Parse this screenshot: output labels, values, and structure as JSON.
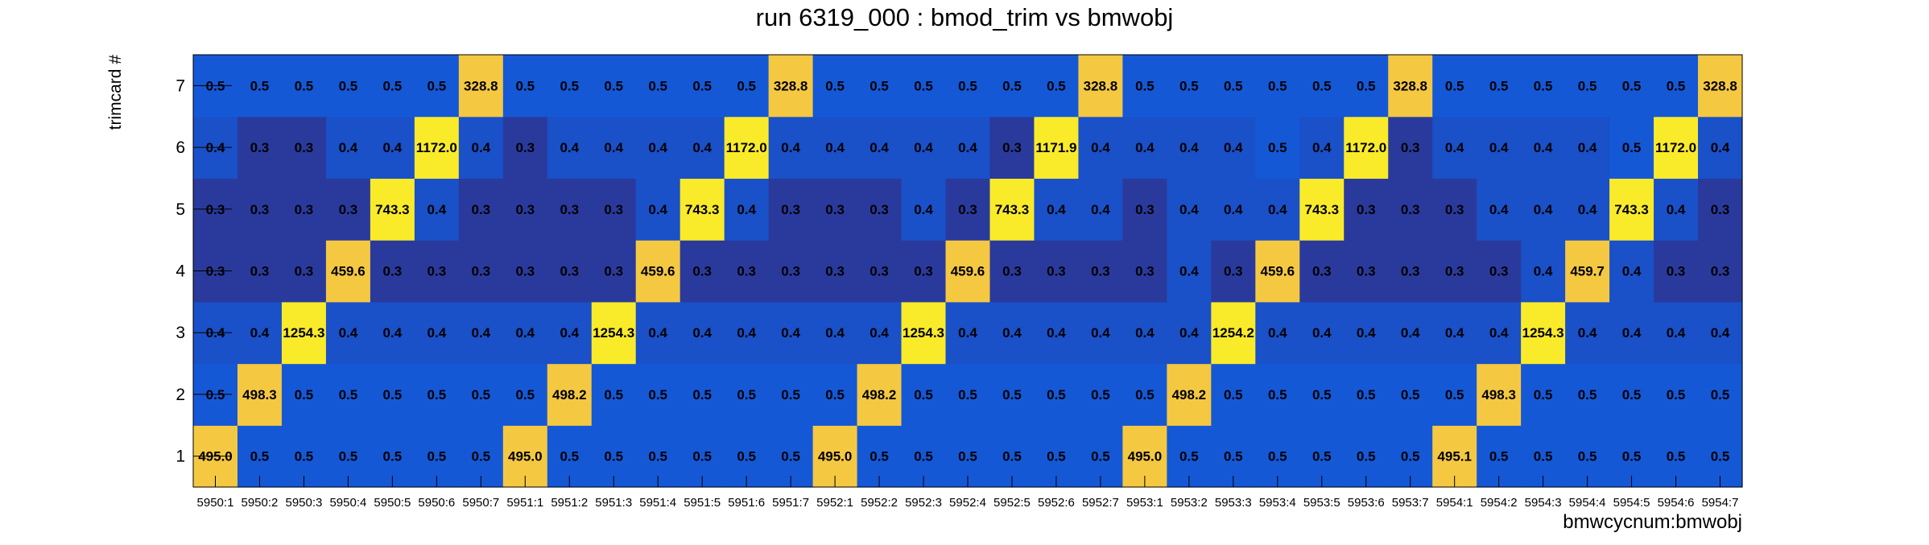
{
  "chart_data": {
    "type": "heatmap",
    "title": "run 6319_000 : bmod_trim vs bmwobj",
    "xlabel": "bmwcycnum:bmwobj",
    "ylabel": "trimcard #",
    "x": [
      "5950:1",
      "5950:2",
      "5950:3",
      "5950:4",
      "5950:5",
      "5950:6",
      "5950:7",
      "5951:1",
      "5951:2",
      "5951:3",
      "5951:4",
      "5951:5",
      "5951:6",
      "5951:7",
      "5952:1",
      "5952:2",
      "5952:3",
      "5952:4",
      "5952:5",
      "5952:6",
      "5952:7",
      "5953:1",
      "5953:2",
      "5953:3",
      "5953:4",
      "5953:5",
      "5953:6",
      "5953:7",
      "5954:1",
      "5954:2",
      "5954:3",
      "5954:4",
      "5954:5",
      "5954:6",
      "5954:7"
    ],
    "y": [
      "1",
      "2",
      "3",
      "4",
      "5",
      "6",
      "7"
    ],
    "values": [
      [
        "495.0",
        "0.5",
        "0.5",
        "0.5",
        "0.5",
        "0.5",
        "0.5",
        "495.0",
        "0.5",
        "0.5",
        "0.5",
        "0.5",
        "0.5",
        "0.5",
        "495.0",
        "0.5",
        "0.5",
        "0.5",
        "0.5",
        "0.5",
        "0.5",
        "495.0",
        "0.5",
        "0.5",
        "0.5",
        "0.5",
        "0.5",
        "0.5",
        "495.1",
        "0.5",
        "0.5",
        "0.5",
        "0.5",
        "0.5",
        "0.5"
      ],
      [
        "0.5",
        "498.3",
        "0.5",
        "0.5",
        "0.5",
        "0.5",
        "0.5",
        "0.5",
        "498.2",
        "0.5",
        "0.5",
        "0.5",
        "0.5",
        "0.5",
        "0.5",
        "498.2",
        "0.5",
        "0.5",
        "0.5",
        "0.5",
        "0.5",
        "0.5",
        "498.2",
        "0.5",
        "0.5",
        "0.5",
        "0.5",
        "0.5",
        "0.5",
        "498.3",
        "0.5",
        "0.5",
        "0.5",
        "0.5",
        "0.5"
      ],
      [
        "0.4",
        "0.4",
        "1254.3",
        "0.4",
        "0.4",
        "0.4",
        "0.4",
        "0.4",
        "0.4",
        "1254.3",
        "0.4",
        "0.4",
        "0.4",
        "0.4",
        "0.4",
        "0.4",
        "1254.3",
        "0.4",
        "0.4",
        "0.4",
        "0.4",
        "0.4",
        "0.4",
        "1254.2",
        "0.4",
        "0.4",
        "0.4",
        "0.4",
        "0.4",
        "0.4",
        "1254.3",
        "0.4",
        "0.4",
        "0.4",
        "0.4"
      ],
      [
        "0.3",
        "0.3",
        "0.3",
        "459.6",
        "0.3",
        "0.3",
        "0.3",
        "0.3",
        "0.3",
        "0.3",
        "459.6",
        "0.3",
        "0.3",
        "0.3",
        "0.3",
        "0.3",
        "0.3",
        "459.6",
        "0.3",
        "0.3",
        "0.3",
        "0.3",
        "0.4",
        "0.3",
        "459.6",
        "0.3",
        "0.3",
        "0.3",
        "0.3",
        "0.3",
        "0.4",
        "459.7",
        "0.4",
        "0.3",
        "0.3"
      ],
      [
        "0.3",
        "0.3",
        "0.3",
        "0.3",
        "743.3",
        "0.4",
        "0.3",
        "0.3",
        "0.3",
        "0.3",
        "0.4",
        "743.3",
        "0.4",
        "0.3",
        "0.3",
        "0.3",
        "0.4",
        "0.3",
        "743.3",
        "0.4",
        "0.4",
        "0.3",
        "0.4",
        "0.4",
        "0.4",
        "743.3",
        "0.3",
        "0.3",
        "0.3",
        "0.4",
        "0.4",
        "0.4",
        "743.3",
        "0.4",
        "0.3"
      ],
      [
        "0.4",
        "0.3",
        "0.3",
        "0.4",
        "0.4",
        "1172.0",
        "0.4",
        "0.3",
        "0.4",
        "0.4",
        "0.4",
        "0.4",
        "1172.0",
        "0.4",
        "0.4",
        "0.4",
        "0.4",
        "0.4",
        "0.3",
        "1171.9",
        "0.4",
        "0.4",
        "0.4",
        "0.4",
        "0.5",
        "0.4",
        "1172.0",
        "0.3",
        "0.4",
        "0.4",
        "0.4",
        "0.4",
        "0.5",
        "1172.0",
        "0.4"
      ],
      [
        "0.5",
        "0.5",
        "0.5",
        "0.5",
        "0.5",
        "0.5",
        "328.8",
        "0.5",
        "0.5",
        "0.5",
        "0.5",
        "0.5",
        "0.5",
        "328.8",
        "0.5",
        "0.5",
        "0.5",
        "0.5",
        "0.5",
        "0.5",
        "328.8",
        "0.5",
        "0.5",
        "0.5",
        "0.5",
        "0.5",
        "0.5",
        "328.8",
        "0.5",
        "0.5",
        "0.5",
        "0.5",
        "0.5",
        "0.5",
        "328.8"
      ]
    ],
    "colors": {
      "low": "#2a3a9c",
      "mid_low": "#1a50c8",
      "mid": "#1558d6",
      "peak_small": "#f5c842",
      "peak_large": "#faeb2a",
      "axis": "#000000"
    },
    "grid": false
  }
}
